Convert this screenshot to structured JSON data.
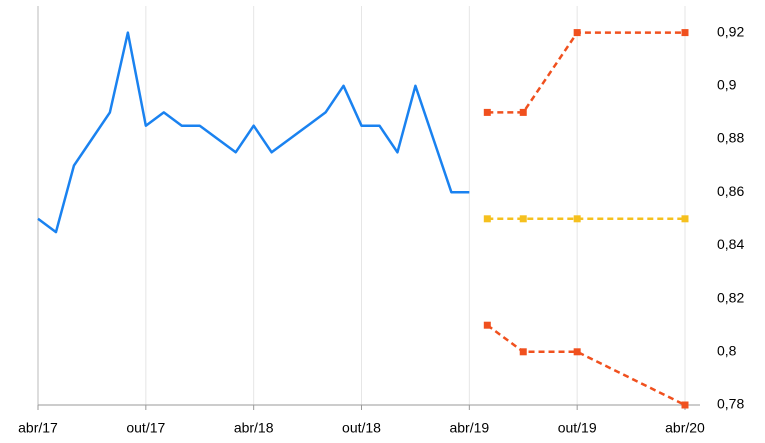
{
  "chart_data": {
    "type": "line",
    "xlim": [
      "2017-04",
      "2020-04"
    ],
    "xticks": [
      {
        "value": "2017-04",
        "label": "abr/17"
      },
      {
        "value": "2017-10",
        "label": "out/17"
      },
      {
        "value": "2018-04",
        "label": "abr/18"
      },
      {
        "value": "2018-10",
        "label": "out/18"
      },
      {
        "value": "2019-04",
        "label": "abr/19"
      },
      {
        "value": "2019-10",
        "label": "out/19"
      },
      {
        "value": "2020-04",
        "label": "abr/20"
      }
    ],
    "ylim": [
      0.78,
      0.93
    ],
    "yticks": [
      {
        "value": 0.78,
        "label": "0,78"
      },
      {
        "value": 0.8,
        "label": "0,8"
      },
      {
        "value": 0.82,
        "label": "0,82"
      },
      {
        "value": 0.84,
        "label": "0,84"
      },
      {
        "value": 0.86,
        "label": "0,86"
      },
      {
        "value": 0.88,
        "label": "0,88"
      },
      {
        "value": 0.9,
        "label": "0,9"
      },
      {
        "value": 0.92,
        "label": "0,92"
      }
    ],
    "y_axis_side": "right",
    "grid": true,
    "series": [
      {
        "color": "#1a82f0",
        "dashed": false,
        "markers": false,
        "x": [
          "2017-04",
          "2017-05",
          "2017-06",
          "2017-07",
          "2017-08",
          "2017-09",
          "2017-10",
          "2017-11",
          "2017-12",
          "2018-01",
          "2018-02",
          "2018-03",
          "2018-04",
          "2018-05",
          "2018-06",
          "2018-07",
          "2018-08",
          "2018-09",
          "2018-10",
          "2018-11",
          "2018-12",
          "2019-01",
          "2019-02",
          "2019-03",
          "2019-04"
        ],
        "values": [
          0.85,
          0.845,
          0.87,
          0.88,
          0.89,
          0.92,
          0.885,
          0.89,
          0.885,
          0.885,
          0.88,
          0.875,
          0.885,
          0.875,
          0.88,
          0.885,
          0.89,
          0.9,
          0.885,
          0.885,
          0.875,
          0.9,
          0.88,
          0.86,
          0.86
        ]
      },
      {
        "color": "#f0501e",
        "dashed": true,
        "markers": true,
        "x": [
          "2019-05",
          "2019-07",
          "2019-10",
          "2020-04"
        ],
        "values": [
          0.89,
          0.89,
          0.92,
          0.92
        ]
      },
      {
        "color": "#f5c01e",
        "dashed": true,
        "markers": true,
        "x": [
          "2019-05",
          "2019-07",
          "2019-10",
          "2020-04"
        ],
        "values": [
          0.85,
          0.85,
          0.85,
          0.85
        ]
      },
      {
        "color": "#f0501e",
        "dashed": true,
        "markers": true,
        "x": [
          "2019-05",
          "2019-07",
          "2019-10",
          "2020-04"
        ],
        "values": [
          0.81,
          0.8,
          0.8,
          0.78
        ]
      }
    ]
  }
}
